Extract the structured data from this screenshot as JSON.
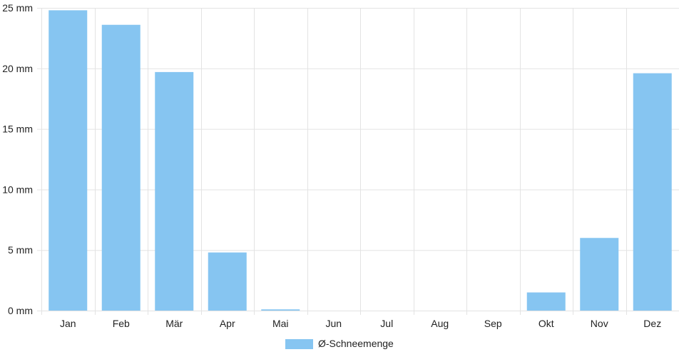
{
  "chart_data": {
    "type": "bar",
    "categories": [
      "Jan",
      "Feb",
      "Mär",
      "Apr",
      "Mai",
      "Jun",
      "Jul",
      "Aug",
      "Sep",
      "Okt",
      "Nov",
      "Dez"
    ],
    "series": [
      {
        "name": "Ø-Schneemenge",
        "values": [
          24.8,
          23.6,
          19.7,
          4.8,
          0.1,
          0,
          0,
          0,
          0,
          1.5,
          6.0,
          19.6
        ],
        "color": "#86c5f1"
      }
    ],
    "yticks": [
      "0 mm",
      "5 mm",
      "10 mm",
      "15 mm",
      "20 mm",
      "25 mm"
    ],
    "ylim": [
      0,
      25
    ],
    "grid": true,
    "legend": "bottom-center"
  }
}
